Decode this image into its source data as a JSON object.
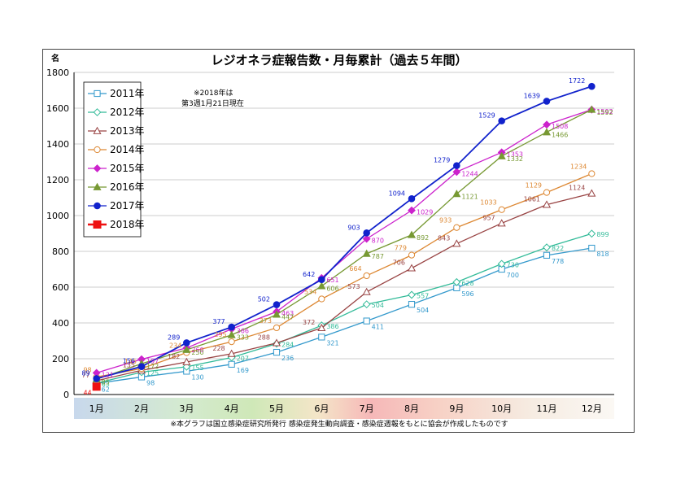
{
  "chart_data": {
    "type": "line",
    "title": "レジオネラ症報告数・月毎累計（過去５年間）",
    "ylabel": "名",
    "ylim": [
      0,
      1800
    ],
    "yticks": [
      0,
      200,
      400,
      600,
      800,
      1000,
      1200,
      1400,
      1600,
      1800
    ],
    "categories": [
      "1月",
      "2月",
      "3月",
      "4月",
      "5月",
      "6月",
      "7月",
      "8月",
      "9月",
      "10月",
      "11月",
      "12月"
    ],
    "note": "※2018年は\n第3週1月21日現在",
    "footnote": "※本グラフは国立感染症研究所発行 感染症発生動向調査・感染症週報をもとに協会が作成したものです",
    "legend_position": "upper-left",
    "series": [
      {
        "name": "2011年",
        "color": "#3399cc",
        "marker": "square-open",
        "values": [
          62,
          98,
          130,
          169,
          236,
          321,
          411,
          504,
          596,
          700,
          778,
          818
        ]
      },
      {
        "name": "2012年",
        "color": "#33bb99",
        "marker": "diamond-open",
        "values": [
          63,
          125,
          155,
          207,
          284,
          386,
          504,
          557,
          628,
          730,
          822,
          899
        ]
      },
      {
        "name": "2013年",
        "color": "#994444",
        "marker": "triangle-open",
        "values": [
          77,
          135,
          182,
          228,
          288,
          372,
          573,
          706,
          843,
          957,
          1061,
          1124
        ]
      },
      {
        "name": "2014年",
        "color": "#dd8833",
        "marker": "circle-open",
        "values": [
          98,
          145,
          234,
          295,
          373,
          534,
          664,
          779,
          933,
          1033,
          1129,
          1234
        ]
      },
      {
        "name": "2015年",
        "color": "#cc22cc",
        "marker": "diamond",
        "values": [
          121,
          197,
          260,
          366,
          463,
          651,
          870,
          1029,
          1244,
          1353,
          1508,
          1592
        ]
      },
      {
        "name": "2016年",
        "color": "#779933",
        "marker": "triangle",
        "values": [
          85,
          172,
          250,
          333,
          447,
          606,
          787,
          892,
          1121,
          1332,
          1466,
          1592
        ]
      },
      {
        "name": "2017年",
        "color": "#1122cc",
        "marker": "circle",
        "values": [
          89,
          156,
          289,
          377,
          502,
          642,
          903,
          1094,
          1279,
          1529,
          1639,
          1722
        ]
      },
      {
        "name": "2018年",
        "color": "#ee1111",
        "marker": "square",
        "values": [
          44,
          null,
          null,
          null,
          null,
          null,
          null,
          null,
          null,
          null,
          null,
          null
        ]
      }
    ]
  }
}
